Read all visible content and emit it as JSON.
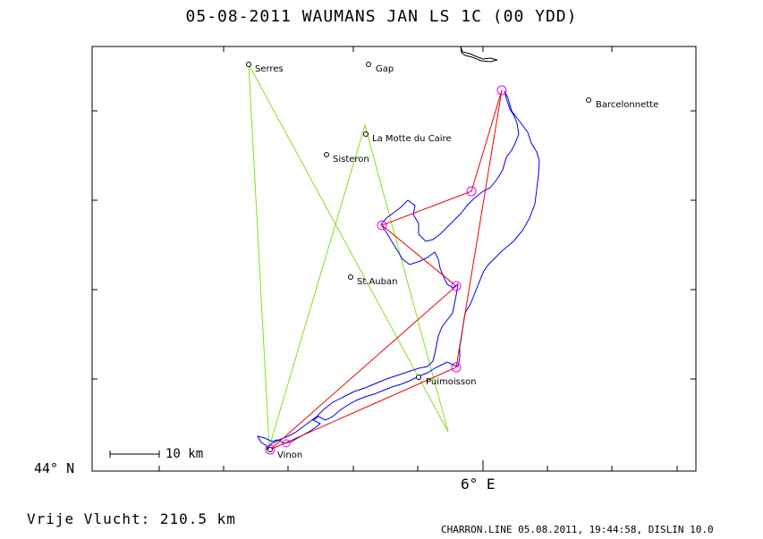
{
  "title": "05-08-2011   WAUMANS JAN   LS 1C (00 YDD)",
  "axes": {
    "lat_label": "44° N",
    "lon_label": "6° E"
  },
  "scale_bar": {
    "label": "10 km"
  },
  "distance_text": "Vrije Vlucht:  210.5 km",
  "footer": "CHARRON.LINE 05.08.2011, 19:44:58, DISLIN 10.0",
  "towns": [
    {
      "name": "Serres"
    },
    {
      "name": "Gap"
    },
    {
      "name": "Barcelonnette"
    },
    {
      "name": "La Motte du Caire"
    },
    {
      "name": "Sisteron"
    },
    {
      "name": "St.Auban"
    },
    {
      "name": "Puimoisson"
    },
    {
      "name": "Vinon"
    }
  ],
  "colors": {
    "track": "#0000ee",
    "task_lines": "#ee0000",
    "turnpoint_circles": "#ee00ee",
    "declared_lines": "#88dd22"
  }
}
